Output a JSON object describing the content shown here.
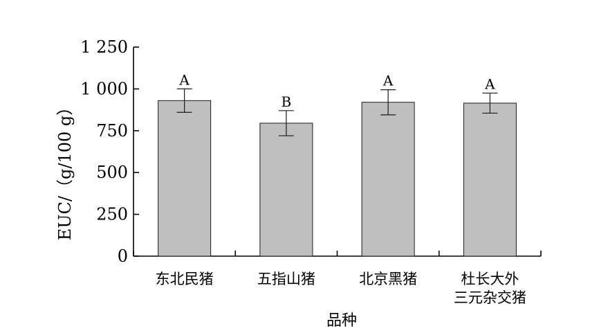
{
  "chart_data": {
    "type": "bar",
    "title": "",
    "xlabel": "品种",
    "ylabel": "EUC/（g/100 g）",
    "ylim": [
      0,
      1250
    ],
    "y_ticks": [
      0,
      250,
      500,
      750,
      1000,
      1250
    ],
    "y_tick_labels": [
      "0",
      "250",
      "500",
      "750",
      "1 000",
      "1 250"
    ],
    "categories": [
      [
        "东北民猪"
      ],
      [
        "五指山猪"
      ],
      [
        "北京黑猪"
      ],
      [
        "杜长大外",
        "三元杂交猪"
      ]
    ],
    "values": [
      930,
      795,
      920,
      915
    ],
    "errors": [
      70,
      75,
      75,
      60
    ],
    "significance": [
      "A",
      "B",
      "A",
      "A"
    ],
    "grid": false,
    "legend": "none",
    "colors": {
      "bar_fill": "#bfbfbf",
      "bar_stroke": "#1a1a1a",
      "axis": "#000000"
    }
  }
}
